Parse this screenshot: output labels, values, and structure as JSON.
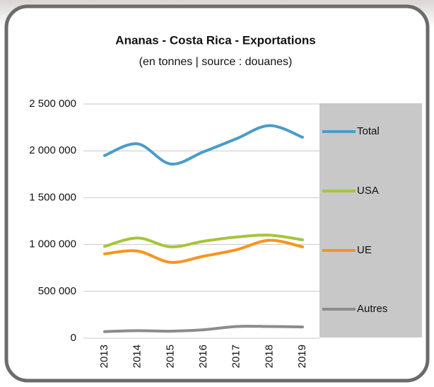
{
  "chart_data": {
    "type": "line",
    "title": "Ananas - Costa Rica - Exportations",
    "subtitle": "(en tonnes | source : douanes)",
    "categories": [
      "2013",
      "2014",
      "2015",
      "2016",
      "2017",
      "2018",
      "2019"
    ],
    "series": [
      {
        "name": "Total",
        "color": "#4a9cc9",
        "values": [
          1950000,
          2075000,
          1860000,
          1990000,
          2130000,
          2270000,
          2145000
        ]
      },
      {
        "name": "USA",
        "color": "#a5c53a",
        "values": [
          980000,
          1070000,
          975000,
          1035000,
          1080000,
          1100000,
          1050000
        ]
      },
      {
        "name": "UE",
        "color": "#f7941d",
        "values": [
          900000,
          930000,
          810000,
          875000,
          945000,
          1045000,
          975000
        ]
      },
      {
        "name": "Autres",
        "color": "#8c8c8c",
        "values": [
          70000,
          80000,
          75000,
          90000,
          125000,
          125000,
          120000
        ]
      }
    ],
    "ylim": [
      0,
      2500000
    ],
    "yticks": [
      0,
      {
        "value": 500000,
        "label": "500 000"
      },
      {
        "value": 1000000,
        "label": "1 000 000"
      },
      {
        "value": 1500000,
        "label": "1 500 000"
      },
      {
        "value": 2000000,
        "label": "2 000 000"
      },
      {
        "value": 2500000,
        "label": "2 500 000"
      }
    ],
    "grid": true,
    "legend": "right"
  }
}
